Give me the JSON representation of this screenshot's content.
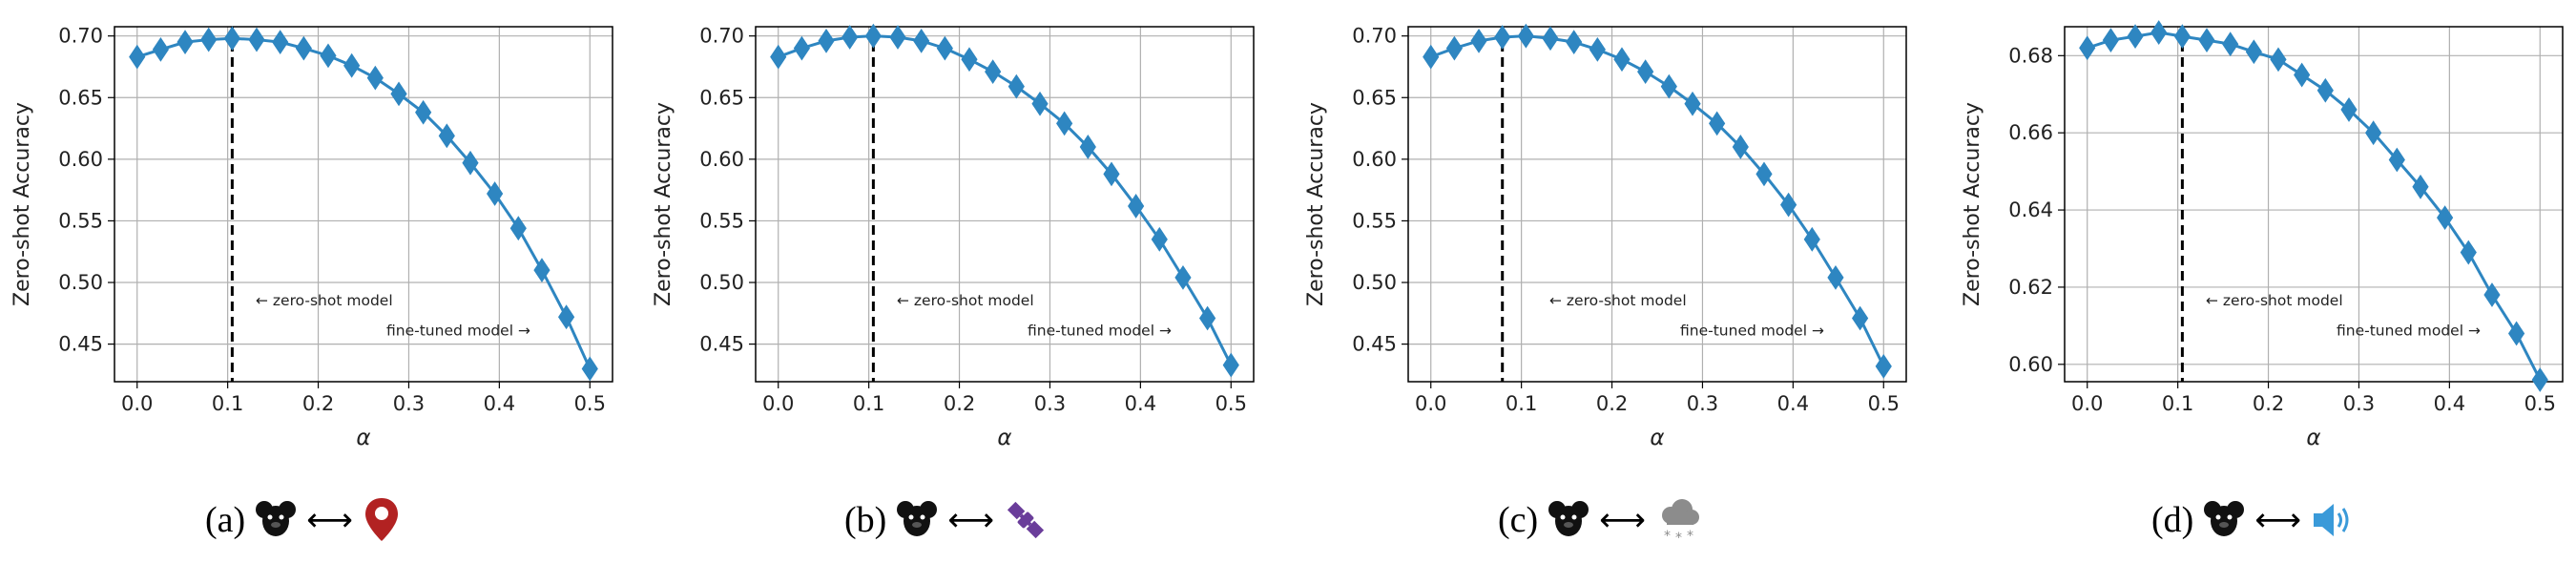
{
  "chart_data": [
    {
      "type": "line",
      "xlabel": "α",
      "ylabel": "Zero-shot Accuracy",
      "xlim": [
        -0.025,
        0.525
      ],
      "ylim": [
        0.4195,
        0.7075
      ],
      "xticks": [
        "0.0",
        "0.1",
        "0.2",
        "0.3",
        "0.4",
        "0.5"
      ],
      "yticks": [
        "0.45",
        "0.50",
        "0.55",
        "0.60",
        "0.65",
        "0.70"
      ],
      "grid": true,
      "marker": "diamond",
      "color": "#2e86c1",
      "vline_x": 0.105,
      "annotations": [
        "← zero-shot model",
        "fine-tuned model →"
      ],
      "x": [
        0.0,
        0.026,
        0.053,
        0.079,
        0.105,
        0.132,
        0.158,
        0.184,
        0.211,
        0.237,
        0.263,
        0.289,
        0.316,
        0.342,
        0.368,
        0.395,
        0.421,
        0.447,
        0.474,
        0.5
      ],
      "y": [
        0.683,
        0.689,
        0.695,
        0.697,
        0.698,
        0.697,
        0.695,
        0.69,
        0.684,
        0.676,
        0.666,
        0.653,
        0.638,
        0.619,
        0.597,
        0.572,
        0.544,
        0.51,
        0.472,
        0.43
      ]
    },
    {
      "type": "line",
      "xlabel": "α",
      "ylabel": "Zero-shot Accuracy",
      "xlim": [
        -0.025,
        0.525
      ],
      "ylim": [
        0.4195,
        0.7075
      ],
      "xticks": [
        "0.0",
        "0.1",
        "0.2",
        "0.3",
        "0.4",
        "0.5"
      ],
      "yticks": [
        "0.45",
        "0.50",
        "0.55",
        "0.60",
        "0.65",
        "0.70"
      ],
      "grid": true,
      "marker": "diamond",
      "color": "#2e86c1",
      "vline_x": 0.105,
      "annotations": [
        "← zero-shot model",
        "fine-tuned model →"
      ],
      "x": [
        0.0,
        0.026,
        0.053,
        0.079,
        0.105,
        0.132,
        0.158,
        0.184,
        0.211,
        0.237,
        0.263,
        0.289,
        0.316,
        0.342,
        0.368,
        0.395,
        0.421,
        0.447,
        0.474,
        0.5
      ],
      "y": [
        0.683,
        0.69,
        0.696,
        0.699,
        0.7,
        0.699,
        0.696,
        0.69,
        0.681,
        0.671,
        0.659,
        0.645,
        0.629,
        0.61,
        0.588,
        0.562,
        0.535,
        0.504,
        0.471,
        0.433
      ]
    },
    {
      "type": "line",
      "xlabel": "α",
      "ylabel": "Zero-shot Accuracy",
      "xlim": [
        -0.025,
        0.525
      ],
      "ylim": [
        0.4195,
        0.7075
      ],
      "xticks": [
        "0.0",
        "0.1",
        "0.2",
        "0.3",
        "0.4",
        "0.5"
      ],
      "yticks": [
        "0.45",
        "0.50",
        "0.55",
        "0.60",
        "0.65",
        "0.70"
      ],
      "grid": true,
      "marker": "diamond",
      "color": "#2e86c1",
      "vline_x": 0.079,
      "annotations": [
        "← zero-shot model",
        "fine-tuned model →"
      ],
      "x": [
        0.0,
        0.026,
        0.053,
        0.079,
        0.105,
        0.132,
        0.158,
        0.184,
        0.211,
        0.237,
        0.263,
        0.289,
        0.316,
        0.342,
        0.368,
        0.395,
        0.421,
        0.447,
        0.474,
        0.5
      ],
      "y": [
        0.683,
        0.69,
        0.696,
        0.699,
        0.7,
        0.698,
        0.695,
        0.689,
        0.681,
        0.671,
        0.659,
        0.645,
        0.629,
        0.61,
        0.588,
        0.563,
        0.535,
        0.504,
        0.471,
        0.432
      ]
    },
    {
      "type": "line",
      "xlabel": "α",
      "ylabel": "Zero-shot Accuracy",
      "xlim": [
        -0.025,
        0.525
      ],
      "ylim": [
        0.5955,
        0.6875
      ],
      "xticks": [
        "0.0",
        "0.1",
        "0.2",
        "0.3",
        "0.4",
        "0.5"
      ],
      "yticks": [
        "0.60",
        "0.62",
        "0.64",
        "0.66",
        "0.68"
      ],
      "grid": true,
      "marker": "diamond",
      "color": "#2e86c1",
      "vline_x": 0.105,
      "annotations": [
        "← zero-shot model",
        "fine-tuned model →"
      ],
      "x": [
        0.0,
        0.026,
        0.053,
        0.079,
        0.105,
        0.132,
        0.158,
        0.184,
        0.211,
        0.237,
        0.263,
        0.289,
        0.316,
        0.342,
        0.368,
        0.395,
        0.421,
        0.447,
        0.474,
        0.5
      ],
      "y": [
        0.682,
        0.684,
        0.685,
        0.686,
        0.685,
        0.684,
        0.683,
        0.681,
        0.679,
        0.675,
        0.671,
        0.666,
        0.66,
        0.653,
        0.646,
        0.638,
        0.629,
        0.618,
        0.608,
        0.596
      ]
    }
  ],
  "captions": [
    {
      "label": "(a)",
      "icon": "location-pin-icon",
      "icon_color": "#b22222"
    },
    {
      "label": "(b)",
      "icon": "satellite-icon",
      "icon_color": "#6a3d9a"
    },
    {
      "label": "(c)",
      "icon": "snow-cloud-icon",
      "icon_color": "#8c8c8c"
    },
    {
      "label": "(d)",
      "icon": "speaker-icon",
      "icon_color": "#3a9ad9"
    }
  ],
  "caption_arrow": "⟷"
}
